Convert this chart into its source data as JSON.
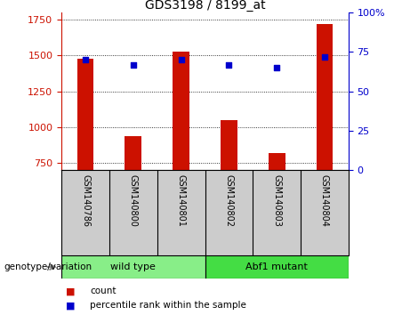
{
  "title": "GDS3198 / 8199_at",
  "samples": [
    "GSM140786",
    "GSM140800",
    "GSM140801",
    "GSM140802",
    "GSM140803",
    "GSM140804"
  ],
  "counts": [
    1480,
    940,
    1530,
    1050,
    820,
    1720
  ],
  "percentile_ranks": [
    70,
    67,
    70,
    67,
    65,
    72
  ],
  "ylim_left": [
    700,
    1800
  ],
  "ylim_right": [
    0,
    100
  ],
  "yticks_left": [
    750,
    1000,
    1250,
    1500,
    1750
  ],
  "yticks_right": [
    0,
    25,
    50,
    75,
    100
  ],
  "bar_color": "#cc1100",
  "dot_color": "#0000cc",
  "bar_width": 0.35,
  "groups": [
    {
      "label": "wild type",
      "indices": [
        0,
        1,
        2
      ],
      "color": "#88ee88"
    },
    {
      "label": "Abf1 mutant",
      "indices": [
        3,
        4,
        5
      ],
      "color": "#44dd44"
    }
  ],
  "group_label": "genotype/variation",
  "legend_count_label": "count",
  "legend_percentile_label": "percentile rank within the sample",
  "background_color": "#ffffff",
  "sample_label_area_color": "#cccccc",
  "left_tick_color": "#cc1100",
  "right_tick_color": "#0000cc"
}
